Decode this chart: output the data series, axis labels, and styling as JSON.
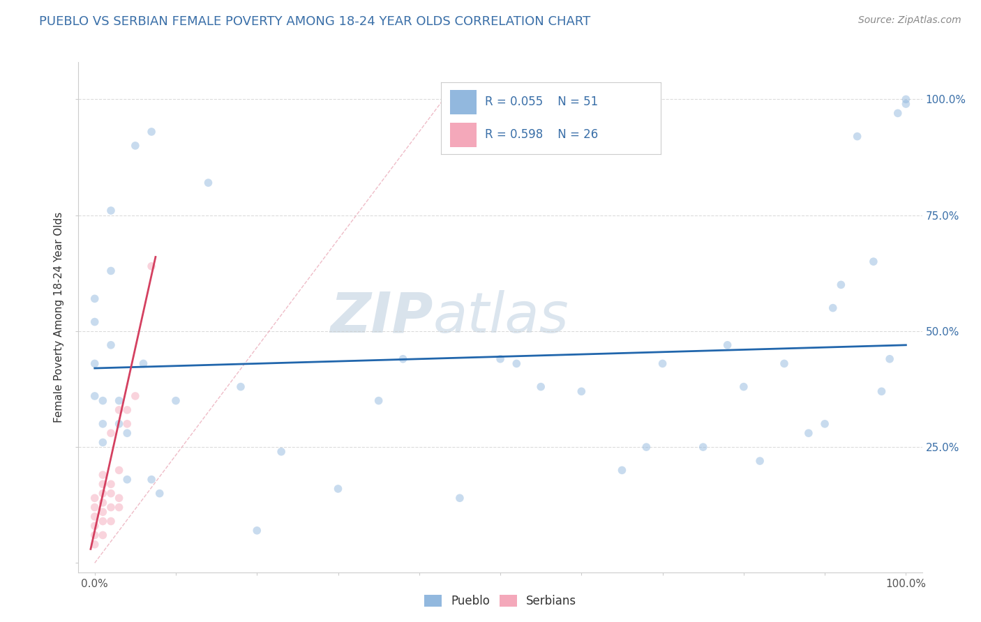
{
  "title": "PUEBLO VS SERBIAN FEMALE POVERTY AMONG 18-24 YEAR OLDS CORRELATION CHART",
  "source": "Source: ZipAtlas.com",
  "ylabel": "Female Poverty Among 18-24 Year Olds",
  "xlim": [
    -0.02,
    1.02
  ],
  "ylim": [
    -0.02,
    1.08
  ],
  "xtick_positions": [
    0.0,
    0.1,
    0.2,
    0.3,
    0.4,
    0.5,
    0.6,
    0.7,
    0.8,
    0.9,
    1.0
  ],
  "xtick_labels": [
    "0.0%",
    "",
    "",
    "",
    "",
    "",
    "",
    "",
    "",
    "",
    "100.0%"
  ],
  "ytick_positions": [
    0.0,
    0.25,
    0.5,
    0.75,
    1.0
  ],
  "ytick_labels_right": [
    "",
    "25.0%",
    "50.0%",
    "75.0%",
    "100.0%"
  ],
  "legend_r1": "R = 0.055",
  "legend_n1": "N = 51",
  "legend_r2": "R = 0.598",
  "legend_n2": "N = 26",
  "watermark_zip": "ZIP",
  "watermark_atlas": "atlas",
  "pueblo_color": "#92B8DE",
  "serbian_color": "#F4A8BA",
  "pueblo_line_color": "#2166ac",
  "serbian_line_color": "#d44060",
  "diagonal_color": "#f4a0b0",
  "title_color": "#3a6fa8",
  "source_color": "#888888",
  "legend_text_color": "#3a6fa8",
  "legend_rn_color": "#3a6fa8",
  "pueblo_scatter_x": [
    0.05,
    0.07,
    0.02,
    0.02,
    0.0,
    0.0,
    0.0,
    0.0,
    0.01,
    0.01,
    0.01,
    0.02,
    0.03,
    0.03,
    0.04,
    0.04,
    0.06,
    0.07,
    0.1,
    0.14,
    0.08,
    0.18,
    0.23,
    0.3,
    0.35,
    0.38,
    0.45,
    0.52,
    0.55,
    0.6,
    0.65,
    0.7,
    0.75,
    0.8,
    0.85,
    0.9,
    0.91,
    0.92,
    0.94,
    0.96,
    0.97,
    0.98,
    0.99,
    1.0,
    1.0,
    0.88,
    0.68,
    0.78,
    0.82,
    0.5,
    0.2
  ],
  "pueblo_scatter_y": [
    0.9,
    0.93,
    0.76,
    0.63,
    0.57,
    0.52,
    0.43,
    0.36,
    0.35,
    0.3,
    0.26,
    0.47,
    0.35,
    0.3,
    0.28,
    0.18,
    0.43,
    0.18,
    0.35,
    0.82,
    0.15,
    0.38,
    0.24,
    0.16,
    0.35,
    0.44,
    0.14,
    0.43,
    0.38,
    0.37,
    0.2,
    0.43,
    0.25,
    0.38,
    0.43,
    0.3,
    0.55,
    0.6,
    0.92,
    0.65,
    0.37,
    0.44,
    0.97,
    1.0,
    0.99,
    0.28,
    0.25,
    0.47,
    0.22,
    0.44,
    0.07
  ],
  "serbian_scatter_x": [
    0.0,
    0.0,
    0.0,
    0.0,
    0.0,
    0.0,
    0.01,
    0.01,
    0.01,
    0.01,
    0.01,
    0.01,
    0.01,
    0.02,
    0.02,
    0.02,
    0.02,
    0.02,
    0.03,
    0.03,
    0.03,
    0.03,
    0.04,
    0.04,
    0.05,
    0.07
  ],
  "serbian_scatter_y": [
    0.04,
    0.06,
    0.08,
    0.1,
    0.12,
    0.14,
    0.06,
    0.09,
    0.11,
    0.13,
    0.15,
    0.17,
    0.19,
    0.09,
    0.12,
    0.15,
    0.17,
    0.28,
    0.12,
    0.14,
    0.2,
    0.33,
    0.3,
    0.33,
    0.36,
    0.64
  ],
  "pueblo_line_x": [
    0.0,
    1.0
  ],
  "pueblo_line_y": [
    0.42,
    0.47
  ],
  "serbian_line_x": [
    -0.005,
    0.075
  ],
  "serbian_line_y": [
    0.03,
    0.66
  ],
  "diagonal_line_x": [
    0.0,
    0.43
  ],
  "diagonal_line_y": [
    0.0,
    1.0
  ],
  "background_color": "#ffffff",
  "grid_color": "#cccccc",
  "marker_size": 70,
  "marker_alpha": 0.5
}
